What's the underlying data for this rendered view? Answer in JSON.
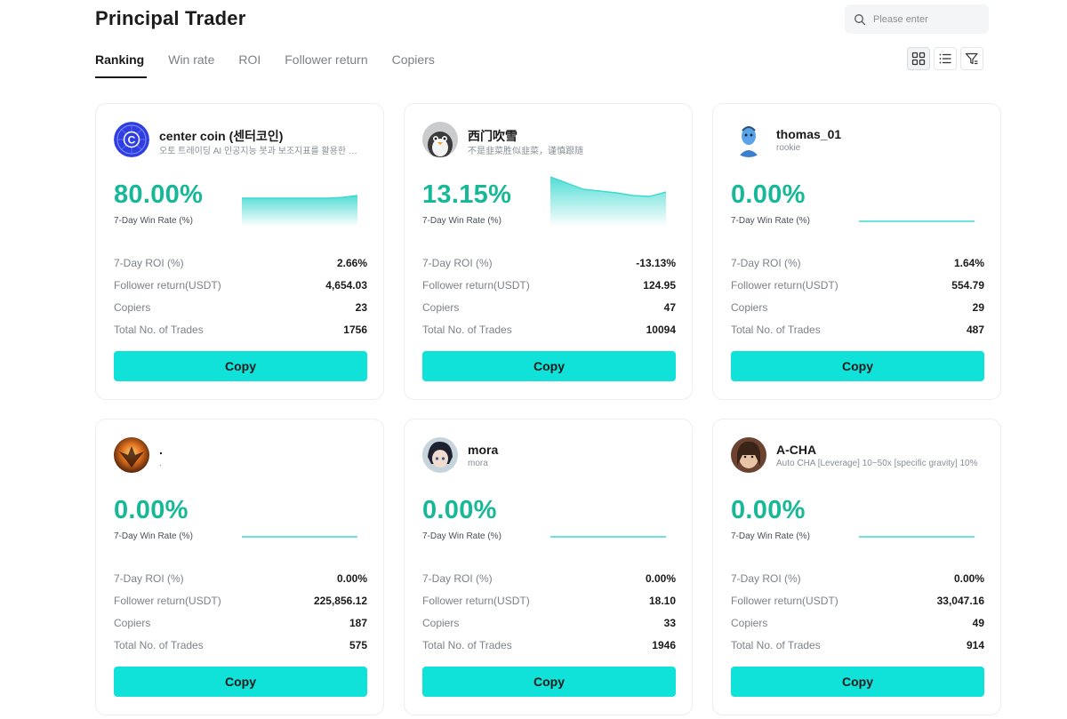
{
  "header": {
    "title": "Principal Trader",
    "search_placeholder": "Please enter"
  },
  "tabs": [
    {
      "label": "Ranking",
      "active": true
    },
    {
      "label": "Win rate",
      "active": false
    },
    {
      "label": "ROI",
      "active": false
    },
    {
      "label": "Follower return",
      "active": false
    },
    {
      "label": "Copiers",
      "active": false
    }
  ],
  "view_buttons": [
    "grid-view-icon",
    "list-view-icon",
    "filter-icon"
  ],
  "labels": {
    "win_rate": "7-Day Win Rate (%)",
    "roi": "7-Day ROI (%)",
    "follower_return": "Follower return(USDT)",
    "copiers": "Copiers",
    "total_trades": "Total No. of Trades",
    "copy": "Copy"
  },
  "colors": {
    "accent": "#17b897",
    "copy_button": "#10e1d9",
    "chart_line": "#3fd9d0"
  },
  "traders": [
    {
      "name": "center coin (센터코인)",
      "bio": "오토 트레이딩 AI 인공지능 봇과 보조지표를 활용한 자동매매",
      "avatar_icon": "center-coin-logo-icon",
      "win_rate": "80.00%",
      "roi": "2.66%",
      "follower_return": "4,654.03",
      "copiers": "23",
      "total_trades": "1756",
      "trend": [
        52,
        52,
        52,
        52,
        52,
        52,
        52,
        54,
        58
      ]
    },
    {
      "name": "西门吹雪",
      "bio": "不是韭菜胜似韭菜，谨慎跟随",
      "avatar_icon": "penguin-avatar-icon",
      "win_rate": "13.15%",
      "roi": "-13.13%",
      "follower_return": "124.95",
      "copiers": "47",
      "total_trades": "10094",
      "trend": [
        100,
        86,
        72,
        68,
        64,
        58,
        56,
        66
      ]
    },
    {
      "name": "thomas_01",
      "bio": "rookie",
      "avatar_icon": "blue-avatar-icon",
      "win_rate": "0.00%",
      "roi": "1.64%",
      "follower_return": "554.79",
      "copiers": "29",
      "total_trades": "487",
      "trend": [
        0,
        0,
        0,
        0,
        0,
        0,
        0,
        0
      ]
    },
    {
      "name": ".",
      "bio": ".",
      "avatar_icon": "phoenix-avatar-icon",
      "win_rate": "0.00%",
      "roi": "0.00%",
      "follower_return": "225,856.12",
      "copiers": "187",
      "total_trades": "575",
      "trend": [
        0,
        0,
        0,
        0,
        0,
        0,
        0,
        0
      ]
    },
    {
      "name": "mora",
      "bio": "mora",
      "avatar_icon": "anime-avatar-icon",
      "win_rate": "0.00%",
      "roi": "0.00%",
      "follower_return": "18.10",
      "copiers": "33",
      "total_trades": "1946",
      "trend": [
        0,
        0,
        0,
        0,
        0,
        0,
        0,
        0
      ]
    },
    {
      "name": "A-CHA",
      "bio": "Auto CHA [Leverage] 10~50x [specific gravity] 10%",
      "avatar_icon": "acha-avatar-icon",
      "win_rate": "0.00%",
      "roi": "0.00%",
      "follower_return": "33,047.16",
      "copiers": "49",
      "total_trades": "914",
      "trend": [
        0,
        0,
        0,
        0,
        0,
        0,
        0,
        0
      ]
    }
  ]
}
